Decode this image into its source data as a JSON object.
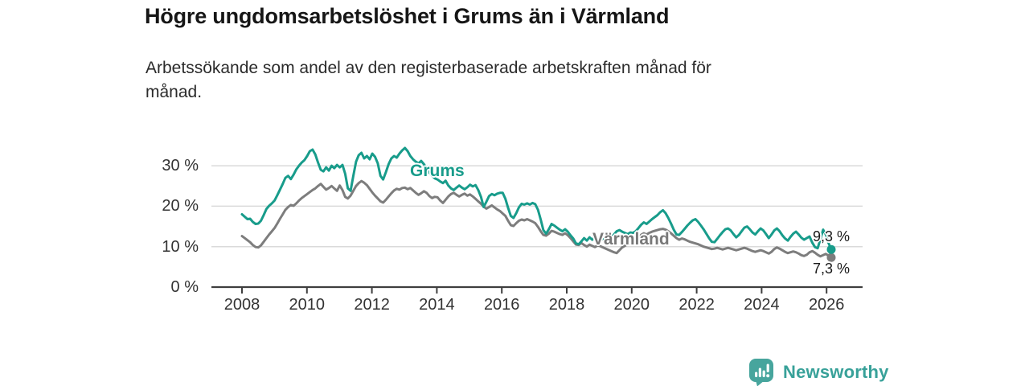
{
  "header": {
    "title": "Högre ungdomsarbetslöshet i Grums än i Värmland",
    "subtitle": "Arbetssökande som andel av den registerbaserade arbetskraften månad för månad.",
    "subtitle_lines": [
      "Arbetssökande som andel av den registerbaserade arbetskraften månad för",
      "månad."
    ]
  },
  "colors": {
    "accent_teal": "#189c8b",
    "series_gray": "#7d7d7d",
    "grid": "#dadada",
    "axis": "#3f3f3f",
    "logo_teal": "#47a59d"
  },
  "chart_data": {
    "type": "line",
    "title": "Högre ungdomsarbetslöshet i Grums än i Värmland",
    "subtitle": "Arbetssökande som andel av den registerbaserade arbetskraften månad för månad.",
    "xlabel": "",
    "ylabel": "%",
    "x_range": {
      "start": "2008-01",
      "end": "2026-02",
      "frequency": "monthly"
    },
    "ylim": [
      0,
      37
    ],
    "grid": "horizontal",
    "legend": "inline-labels",
    "x_ticks": [
      {
        "label": "2008",
        "year": 2008
      },
      {
        "label": "2010",
        "year": 2010
      },
      {
        "label": "2012",
        "year": 2012
      },
      {
        "label": "2014",
        "year": 2014
      },
      {
        "label": "2016",
        "year": 2016
      },
      {
        "label": "2018",
        "year": 2018
      },
      {
        "label": "2020",
        "year": 2020
      },
      {
        "label": "2022",
        "year": 2022
      },
      {
        "label": "2024",
        "year": 2024
      },
      {
        "label": "2026",
        "year": 2026
      }
    ],
    "y_ticks": [
      {
        "label": "0 %",
        "value": 0
      },
      {
        "label": "10 %",
        "value": 10
      },
      {
        "label": "20 %",
        "value": 20
      },
      {
        "label": "30 %",
        "value": 30
      }
    ],
    "series": [
      {
        "name": "Grums",
        "color": "#189c8b",
        "end_label": "9,3 %",
        "last_value": 9.3,
        "values": [
          18.0,
          17.4,
          16.8,
          16.9,
          16.1,
          15.6,
          15.7,
          16.4,
          17.8,
          19.3,
          20.1,
          20.7,
          21.4,
          22.7,
          24.1,
          25.5,
          27.0,
          27.5,
          26.7,
          27.8,
          29.1,
          30.0,
          30.8,
          31.4,
          32.4,
          33.6,
          34.0,
          32.8,
          30.8,
          29.0,
          28.6,
          29.6,
          28.8,
          30.0,
          29.4,
          30.2,
          29.6,
          30.2,
          28.0,
          24.4,
          23.8,
          27.5,
          31.0,
          32.6,
          33.2,
          31.8,
          32.4,
          31.6,
          33.0,
          32.2,
          30.6,
          27.5,
          26.6,
          28.4,
          30.4,
          31.8,
          32.4,
          32.0,
          33.0,
          33.8,
          34.4,
          33.6,
          32.4,
          31.6,
          31.0,
          30.6,
          31.2,
          30.4,
          29.3,
          28.3,
          27.5,
          26.9,
          26.6,
          26.1,
          25.7,
          26.3,
          25.1,
          24.4,
          24.0,
          24.6,
          25.1,
          24.6,
          24.2,
          24.7,
          25.3,
          24.9,
          25.2,
          24.0,
          22.3,
          19.8,
          21.1,
          22.5,
          23.0,
          22.7,
          23.1,
          23.3,
          23.3,
          21.8,
          19.6,
          17.6,
          17.1,
          18.3,
          19.7,
          20.6,
          20.4,
          20.7,
          20.4,
          20.8,
          20.5,
          19.1,
          16.7,
          14.1,
          13.2,
          14.3,
          15.6,
          15.2,
          14.7,
          14.2,
          13.8,
          14.3,
          13.7,
          12.8,
          12.0,
          10.8,
          10.6,
          11.3,
          12.1,
          11.5,
          12.3,
          11.7,
          12.5,
          12.0,
          12.3,
          11.8,
          11.4,
          11.9,
          12.4,
          13.0,
          13.8,
          14.1,
          13.7,
          13.4,
          13.1,
          13.5,
          13.4,
          13.8,
          14.6,
          15.4,
          16.0,
          15.6,
          16.2,
          16.8,
          17.3,
          17.8,
          18.5,
          19.0,
          18.3,
          17.1,
          15.7,
          14.2,
          13.0,
          12.9,
          13.6,
          14.4,
          15.2,
          15.9,
          16.5,
          16.8,
          16.1,
          15.2,
          14.3,
          13.2,
          12.1,
          11.2,
          11.1,
          11.9,
          12.8,
          13.6,
          14.3,
          14.5,
          14.0,
          13.1,
          12.3,
          12.9,
          13.8,
          14.7,
          15.0,
          14.3,
          13.5,
          13.0,
          13.8,
          14.5,
          14.0,
          13.1,
          12.1,
          13.0,
          14.0,
          14.5,
          13.8,
          12.8,
          12.0,
          11.5,
          12.4,
          13.2,
          13.7,
          13.0,
          12.2,
          11.7,
          12.1,
          12.5,
          11.0,
          9.9,
          9.6,
          11.8,
          14.2,
          13.0,
          10.9,
          9.3
        ]
      },
      {
        "name": "Värmland",
        "color": "#7d7d7d",
        "end_label": "7,3 %",
        "last_value": 7.3,
        "values": [
          12.6,
          12.1,
          11.6,
          11.1,
          10.4,
          9.9,
          9.8,
          10.3,
          11.2,
          12.1,
          13.0,
          13.8,
          14.6,
          15.7,
          16.9,
          18.0,
          19.1,
          19.8,
          20.3,
          20.1,
          20.7,
          21.4,
          22.0,
          22.5,
          23.0,
          23.5,
          24.0,
          24.4,
          25.0,
          25.5,
          24.8,
          24.1,
          24.5,
          25.0,
          24.4,
          23.8,
          25.1,
          24.0,
          22.3,
          21.9,
          22.6,
          23.8,
          25.0,
          25.7,
          26.2,
          25.8,
          25.2,
          24.3,
          23.4,
          22.6,
          21.9,
          21.2,
          20.9,
          21.6,
          22.4,
          23.2,
          23.9,
          24.3,
          24.1,
          24.5,
          24.6,
          24.2,
          24.5,
          23.9,
          23.3,
          22.8,
          23.2,
          23.7,
          23.3,
          22.5,
          22.0,
          22.3,
          22.2,
          21.4,
          20.8,
          21.6,
          22.4,
          23.0,
          23.3,
          22.8,
          22.4,
          22.8,
          23.1,
          22.6,
          22.9,
          22.4,
          21.8,
          21.2,
          20.6,
          19.9,
          19.4,
          19.8,
          20.2,
          19.7,
          19.2,
          18.8,
          18.2,
          17.6,
          16.4,
          15.3,
          15.1,
          15.8,
          16.4,
          16.7,
          16.5,
          16.8,
          16.5,
          16.2,
          15.8,
          14.9,
          13.8,
          12.9,
          12.7,
          13.2,
          13.9,
          13.7,
          13.4,
          13.1,
          12.9,
          13.3,
          12.8,
          12.1,
          11.3,
          10.5,
          10.4,
          10.9,
          10.4,
          10.0,
          10.5,
          10.2,
          9.9,
          10.3,
          10.1,
          9.8,
          9.5,
          9.2,
          8.9,
          8.6,
          8.4,
          9.1,
          9.8,
          10.2,
          10.6,
          10.9,
          11.2,
          11.6,
          12.2,
          12.9,
          13.3,
          13.0,
          13.4,
          13.7,
          13.9,
          14.1,
          14.3,
          14.4,
          14.2,
          13.8,
          13.3,
          12.7,
          12.1,
          11.7,
          12.0,
          11.8,
          11.5,
          11.2,
          11.0,
          10.8,
          10.6,
          10.3,
          10.0,
          9.8,
          9.6,
          9.4,
          9.5,
          9.7,
          9.5,
          9.3,
          9.5,
          9.7,
          9.5,
          9.3,
          9.1,
          9.3,
          9.5,
          9.7,
          9.5,
          9.2,
          8.9,
          8.7,
          8.9,
          9.1,
          8.9,
          8.6,
          8.3,
          8.7,
          9.4,
          9.8,
          9.5,
          9.1,
          8.7,
          8.4,
          8.6,
          8.8,
          8.6,
          8.3,
          7.9,
          7.7,
          8.0,
          8.6,
          8.9,
          8.5,
          8.0,
          7.6,
          7.9,
          8.2,
          7.8,
          7.3
        ]
      }
    ]
  },
  "footer": {
    "brand": "Newsworthy",
    "logo_icon": "bar-chart-speech-bubble-icon"
  }
}
